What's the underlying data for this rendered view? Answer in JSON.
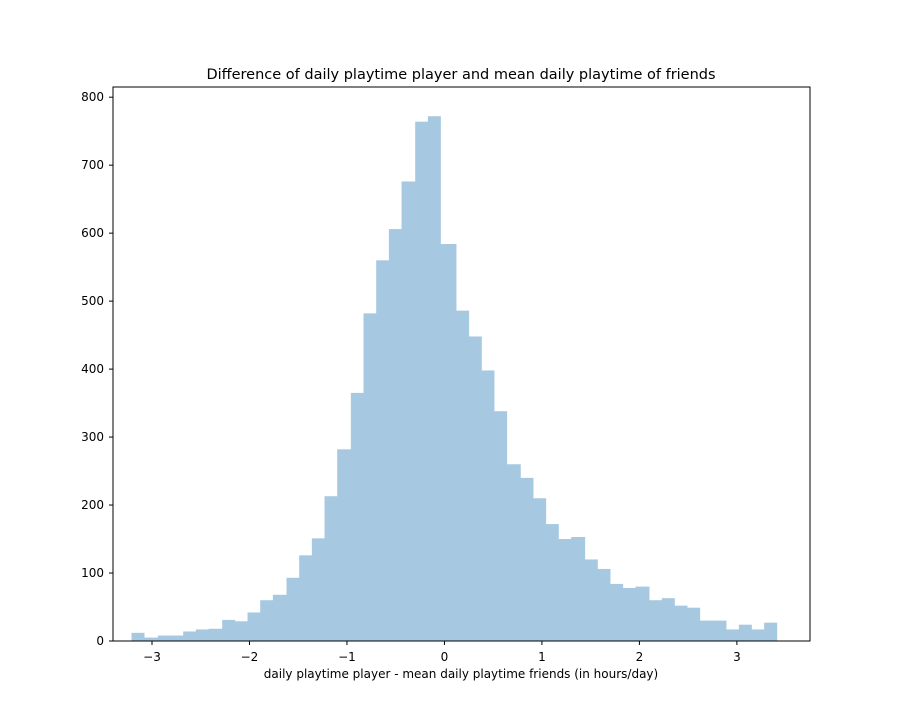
{
  "chart_data": {
    "type": "bar",
    "title": "Difference of daily playtime player and mean daily playtime of friends",
    "xlabel": "daily playtime player - mean daily playtime friends (in hours/day)",
    "ylabel": "",
    "xlim": [
      -3.4,
      3.75
    ],
    "ylim": [
      0,
      815
    ],
    "grid": false,
    "bar_color": "#a6c8e0",
    "x_ticks": [
      {
        "value": -3,
        "label": "−3"
      },
      {
        "value": -2,
        "label": "−2"
      },
      {
        "value": -1,
        "label": "−1"
      },
      {
        "value": 0,
        "label": "0"
      },
      {
        "value": 1,
        "label": "1"
      },
      {
        "value": 2,
        "label": "2"
      },
      {
        "value": 3,
        "label": "3"
      }
    ],
    "y_ticks": [
      {
        "value": 0,
        "label": "0"
      },
      {
        "value": 100,
        "label": "100"
      },
      {
        "value": 200,
        "label": "200"
      },
      {
        "value": 300,
        "label": "300"
      },
      {
        "value": 400,
        "label": "400"
      },
      {
        "value": 500,
        "label": "500"
      },
      {
        "value": 600,
        "label": "600"
      },
      {
        "value": 700,
        "label": "700"
      },
      {
        "value": 800,
        "label": "800"
      }
    ],
    "bins": [
      {
        "x0": -3.21,
        "x1": -3.08,
        "count": 12
      },
      {
        "x0": -3.08,
        "x1": -2.94,
        "count": 5
      },
      {
        "x0": -2.94,
        "x1": -2.81,
        "count": 8
      },
      {
        "x0": -2.81,
        "x1": -2.68,
        "count": 8
      },
      {
        "x0": -2.68,
        "x1": -2.55,
        "count": 14
      },
      {
        "x0": -2.55,
        "x1": -2.42,
        "count": 17
      },
      {
        "x0": -2.42,
        "x1": -2.28,
        "count": 18
      },
      {
        "x0": -2.28,
        "x1": -2.15,
        "count": 31
      },
      {
        "x0": -2.15,
        "x1": -2.02,
        "count": 29
      },
      {
        "x0": -2.02,
        "x1": -1.89,
        "count": 42
      },
      {
        "x0": -1.89,
        "x1": -1.76,
        "count": 60
      },
      {
        "x0": -1.76,
        "x1": -1.62,
        "count": 68
      },
      {
        "x0": -1.62,
        "x1": -1.49,
        "count": 93
      },
      {
        "x0": -1.49,
        "x1": -1.36,
        "count": 126
      },
      {
        "x0": -1.36,
        "x1": -1.23,
        "count": 151
      },
      {
        "x0": -1.23,
        "x1": -1.1,
        "count": 213
      },
      {
        "x0": -1.1,
        "x1": -0.96,
        "count": 282
      },
      {
        "x0": -0.96,
        "x1": -0.83,
        "count": 365
      },
      {
        "x0": -0.83,
        "x1": -0.7,
        "count": 482
      },
      {
        "x0": -0.7,
        "x1": -0.57,
        "count": 560
      },
      {
        "x0": -0.57,
        "x1": -0.44,
        "count": 606
      },
      {
        "x0": -0.44,
        "x1": -0.3,
        "count": 676
      },
      {
        "x0": -0.3,
        "x1": -0.17,
        "count": 764
      },
      {
        "x0": -0.17,
        "x1": -0.04,
        "count": 772
      },
      {
        "x0": -0.04,
        "x1": 0.12,
        "count": 584
      },
      {
        "x0": 0.12,
        "x1": 0.25,
        "count": 486
      },
      {
        "x0": 0.25,
        "x1": 0.38,
        "count": 448
      },
      {
        "x0": 0.38,
        "x1": 0.51,
        "count": 398
      },
      {
        "x0": 0.51,
        "x1": 0.64,
        "count": 338
      },
      {
        "x0": 0.64,
        "x1": 0.78,
        "count": 260
      },
      {
        "x0": 0.78,
        "x1": 0.91,
        "count": 240
      },
      {
        "x0": 0.91,
        "x1": 1.04,
        "count": 210
      },
      {
        "x0": 1.04,
        "x1": 1.17,
        "count": 172
      },
      {
        "x0": 1.17,
        "x1": 1.3,
        "count": 150
      },
      {
        "x0": 1.3,
        "x1": 1.44,
        "count": 153
      },
      {
        "x0": 1.44,
        "x1": 1.57,
        "count": 120
      },
      {
        "x0": 1.57,
        "x1": 1.7,
        "count": 106
      },
      {
        "x0": 1.7,
        "x1": 1.83,
        "count": 84
      },
      {
        "x0": 1.83,
        "x1": 1.96,
        "count": 78
      },
      {
        "x0": 1.96,
        "x1": 2.1,
        "count": 80
      },
      {
        "x0": 2.1,
        "x1": 2.23,
        "count": 60
      },
      {
        "x0": 2.23,
        "x1": 2.36,
        "count": 63
      },
      {
        "x0": 2.36,
        "x1": 2.49,
        "count": 52
      },
      {
        "x0": 2.49,
        "x1": 2.62,
        "count": 49
      },
      {
        "x0": 2.62,
        "x1": 2.76,
        "count": 30
      },
      {
        "x0": 2.76,
        "x1": 2.89,
        "count": 30
      },
      {
        "x0": 2.89,
        "x1": 3.02,
        "count": 17
      },
      {
        "x0": 3.02,
        "x1": 3.15,
        "count": 24
      },
      {
        "x0": 3.15,
        "x1": 3.28,
        "count": 17
      },
      {
        "x0": 3.28,
        "x1": 3.41,
        "count": 27
      }
    ]
  }
}
